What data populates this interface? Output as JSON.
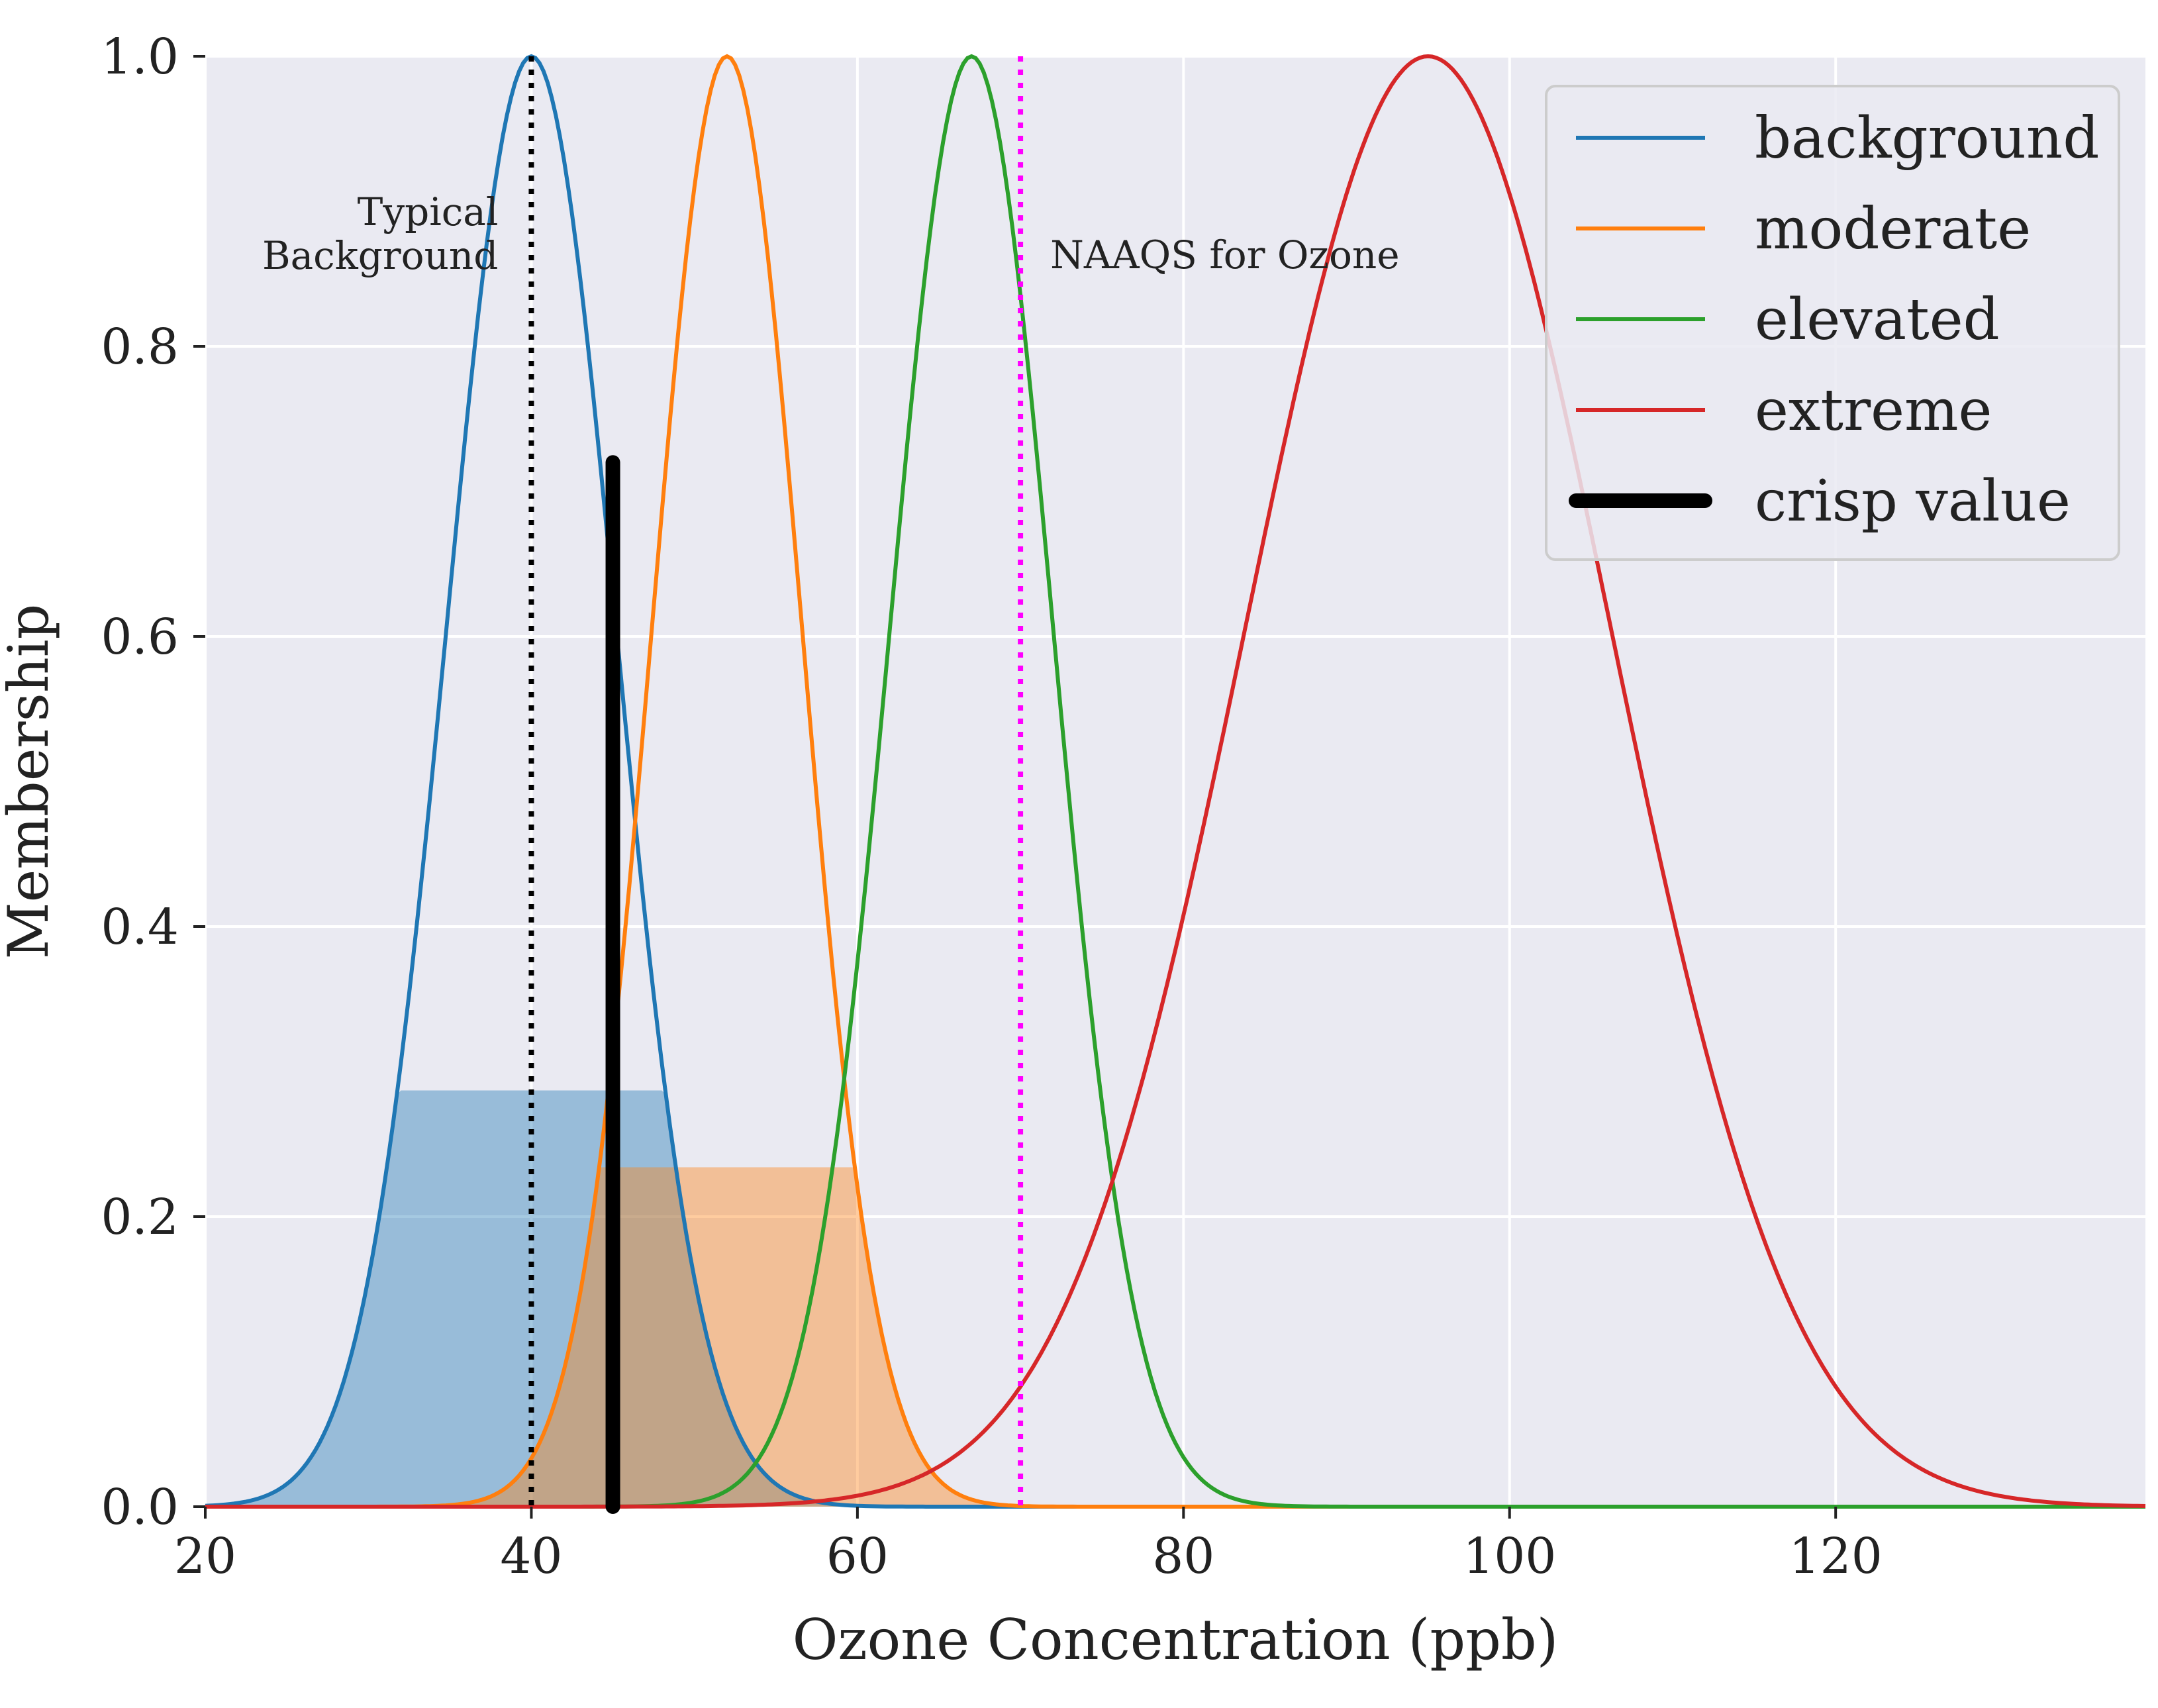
{
  "chart_data": {
    "type": "line",
    "xlabel": "Ozone Concentration (ppb)",
    "ylabel": "Membership",
    "xlim": [
      20,
      139
    ],
    "ylim": [
      0,
      1.0
    ],
    "xticks": [
      "20",
      "40",
      "60",
      "80",
      "100",
      "120"
    ],
    "yticks": [
      "0.0",
      "0.2",
      "0.4",
      "0.6",
      "0.8",
      "1.0"
    ],
    "grid": true,
    "legend_position": "top-right",
    "series": [
      {
        "name": "background",
        "kind": "gaussian",
        "mean": 40,
        "sigma": 5.2,
        "color": "#1f77b4"
      },
      {
        "name": "moderate",
        "kind": "gaussian",
        "mean": 52,
        "sigma": 4.6,
        "color": "#ff7f0e"
      },
      {
        "name": "elevated",
        "kind": "gaussian",
        "mean": 67,
        "sigma": 5.0,
        "color": "#2ca02c"
      },
      {
        "name": "extreme",
        "kind": "gaussian",
        "mean": 95,
        "sigma": 11.2,
        "color": "#d62728"
      },
      {
        "name": "crisp value",
        "kind": "vertical",
        "x": 45,
        "y_max": 0.72,
        "color": "#000000"
      }
    ],
    "shaded_regions": [
      {
        "series": "background",
        "clip_at": 0.287,
        "color": "#1f77b4"
      },
      {
        "series": "moderate",
        "clip_at": 0.234,
        "color": "#ff7f0e"
      }
    ],
    "reference_lines": [
      {
        "x": 40,
        "style": "dotted",
        "color": "#000000",
        "label_lines": [
          "Typical",
          "Background"
        ]
      },
      {
        "x": 70,
        "style": "dotted",
        "color": "#ff00ff",
        "label_lines": [
          "NAAQS for Ozone"
        ]
      }
    ]
  }
}
